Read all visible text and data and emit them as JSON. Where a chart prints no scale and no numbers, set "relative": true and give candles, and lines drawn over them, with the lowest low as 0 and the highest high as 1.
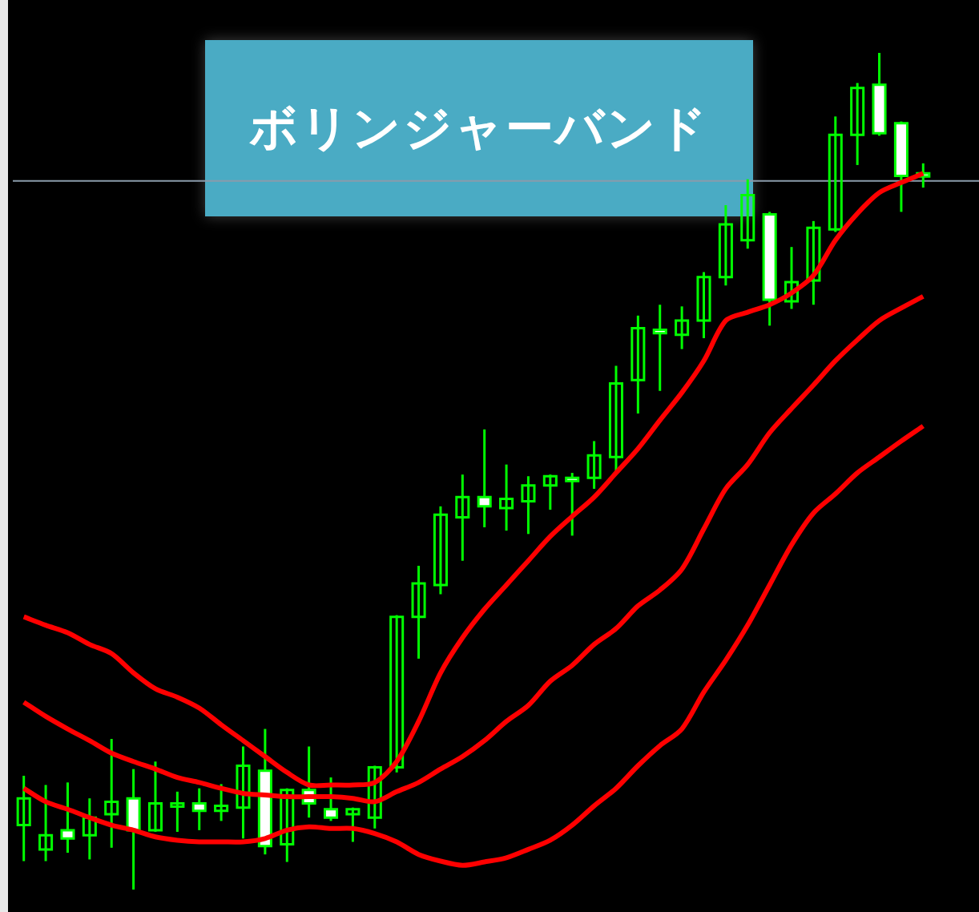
{
  "chart_data": {
    "type": "candlestick",
    "title": "ボリンジャーバンド",
    "relative": true,
    "legend": false,
    "tick_labels": false,
    "categories": [
      null,
      null,
      null,
      null,
      null,
      null,
      null,
      null,
      null,
      null,
      null,
      null,
      null,
      null,
      null,
      null,
      null,
      null,
      null,
      null,
      null,
      null,
      null,
      null,
      null,
      null,
      null,
      null,
      null,
      null,
      null,
      null,
      null,
      null,
      null,
      null,
      null,
      null,
      null,
      null,
      null,
      null
    ],
    "color": "#00ff00",
    "colors": [
      "#00ff00",
      "#00ff00",
      "#ffffff",
      "#00ff00",
      "#00ff00",
      "#ffffff",
      "#00ff00",
      "#00ff00",
      "#ffffff",
      "#00ff00",
      "#00ff00",
      "#ffffff",
      "#00ff00",
      "#ffffff",
      "#ffffff",
      "#00ff00",
      "#00ff00",
      "#00ff00",
      "#00ff00",
      "#00ff00",
      "#00ff00",
      "#ffffff",
      "#00ff00",
      "#00ff00",
      "#00ff00",
      "#ffffff",
      "#00ff00",
      "#00ff00",
      "#00ff00",
      "#ffffff",
      "#00ff00",
      "#00ff00",
      "#00ff00",
      "#00ff00",
      "#ffffff",
      "#00ff00",
      "#00ff00",
      "#00ff00",
      "#00ff00",
      "#ffffff",
      "#ffffff",
      "#ffffff"
    ],
    "ohlc": [
      [
        0.077,
        0.136,
        0.034,
        0.109
      ],
      [
        0.048,
        0.125,
        0.034,
        0.065
      ],
      [
        0.071,
        0.128,
        0.044,
        0.061
      ],
      [
        0.065,
        0.109,
        0.036,
        0.086
      ],
      [
        0.09,
        0.18,
        0.05,
        0.105
      ],
      [
        0.109,
        0.144,
        0,
        0.071
      ],
      [
        0.071,
        0.153,
        0.069,
        0.103
      ],
      [
        0.1,
        0.117,
        0.069,
        0.103
      ],
      [
        0.103,
        0.121,
        0.071,
        0.094
      ],
      [
        0.094,
        0.126,
        0.082,
        0.1
      ],
      [
        0.098,
        0.171,
        0.061,
        0.148
      ],
      [
        0.142,
        0.192,
        0.042,
        0.052
      ],
      [
        0.054,
        0.121,
        0.033,
        0.119
      ],
      [
        0.119,
        0.171,
        0.086,
        0.103
      ],
      [
        0.096,
        0.134,
        0.082,
        0.086
      ],
      [
        0.09,
        0.098,
        0.057,
        0.096
      ],
      [
        0.086,
        0.148,
        0.073,
        0.146
      ],
      [
        0.146,
        0.328,
        0.14,
        0.326
      ],
      [
        0.326,
        0.387,
        0.276,
        0.366
      ],
      [
        0.364,
        0.458,
        0.353,
        0.448
      ],
      [
        0.445,
        0.496,
        0.393,
        0.469
      ],
      [
        0.469,
        0.55,
        0.433,
        0.458
      ],
      [
        0.456,
        0.508,
        0.429,
        0.467
      ],
      [
        0.464,
        0.494,
        0.425,
        0.483
      ],
      [
        0.483,
        0.496,
        0.454,
        0.494
      ],
      [
        0.492,
        0.498,
        0.423,
        0.49
      ],
      [
        0.492,
        0.536,
        0.479,
        0.519
      ],
      [
        0.517,
        0.626,
        0.5,
        0.605
      ],
      [
        0.609,
        0.686,
        0.569,
        0.671
      ],
      [
        0.669,
        0.699,
        0.596,
        0.665
      ],
      [
        0.663,
        0.697,
        0.646,
        0.68
      ],
      [
        0.68,
        0.738,
        0.659,
        0.732
      ],
      [
        0.732,
        0.818,
        0.722,
        0.795
      ],
      [
        0.776,
        0.849,
        0.766,
        0.83
      ],
      [
        0.807,
        0.81,
        0.674,
        0.705
      ],
      [
        0.703,
        0.768,
        0.694,
        0.726
      ],
      [
        0.728,
        0.799,
        0.699,
        0.791
      ],
      [
        0.789,
        0.924,
        0.786,
        0.902
      ],
      [
        0.902,
        0.964,
        0.866,
        0.958
      ],
      [
        0.962,
        1,
        0.901,
        0.904
      ],
      [
        0.916,
        0.918,
        0.81,
        0.853
      ],
      [
        0.856,
        0.868,
        0.839,
        0.853
      ]
    ],
    "series": [
      {
        "type": "line",
        "color": "#ff0000",
        "values": [
          0.326,
          0.316,
          0.307,
          0.293,
          0.282,
          0.259,
          0.24,
          0.23,
          0.217,
          0.197,
          0.178,
          0.159,
          0.14,
          0.125,
          0.125,
          0.125,
          0.128,
          0.153,
          0.201,
          0.259,
          0.301,
          0.335,
          0.364,
          0.393,
          0.422,
          0.446,
          0.469,
          0.498,
          0.527,
          0.561,
          0.594,
          0.632,
          0.68,
          0.69,
          0.699,
          0.713,
          0.734,
          0.776,
          0.808,
          0.833,
          0.845,
          0.856
        ]
      },
      {
        "type": "line",
        "color": "#ff0000",
        "values": [
          0.224,
          0.207,
          0.192,
          0.178,
          0.163,
          0.153,
          0.144,
          0.134,
          0.128,
          0.121,
          0.115,
          0.113,
          0.111,
          0.111,
          0.111,
          0.109,
          0.105,
          0.117,
          0.128,
          0.144,
          0.159,
          0.178,
          0.201,
          0.22,
          0.249,
          0.268,
          0.293,
          0.312,
          0.339,
          0.358,
          0.383,
          0.431,
          0.479,
          0.508,
          0.546,
          0.575,
          0.603,
          0.632,
          0.657,
          0.68,
          0.695,
          0.709
        ]
      },
      {
        "type": "line",
        "color": "#ff0000",
        "values": [
          0.121,
          0.105,
          0.096,
          0.086,
          0.077,
          0.071,
          0.063,
          0.059,
          0.057,
          0.057,
          0.057,
          0.061,
          0.071,
          0.075,
          0.073,
          0.073,
          0.067,
          0.057,
          0.042,
          0.034,
          0.029,
          0.033,
          0.038,
          0.048,
          0.059,
          0.077,
          0.1,
          0.121,
          0.148,
          0.172,
          0.192,
          0.236,
          0.274,
          0.316,
          0.364,
          0.412,
          0.45,
          0.473,
          0.498,
          0.517,
          0.536,
          0.554
        ]
      }
    ],
    "ref_lines": [
      {
        "axis": "y",
        "value": 0.847,
        "color": "#8a9bab"
      }
    ]
  }
}
